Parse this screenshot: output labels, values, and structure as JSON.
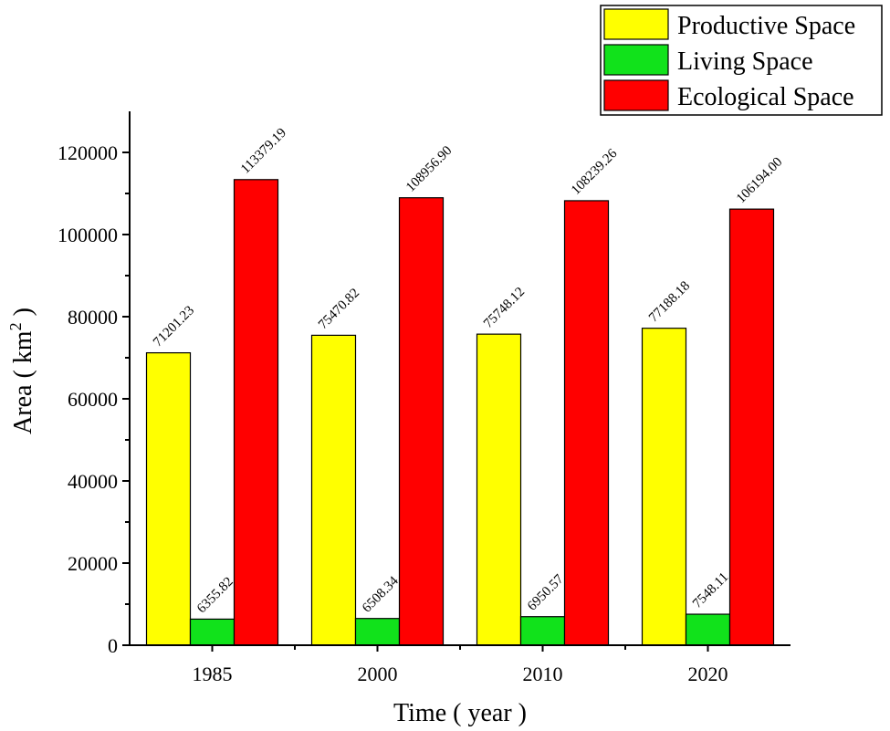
{
  "chart_data": {
    "type": "bar",
    "categories": [
      "1985",
      "2000",
      "2010",
      "2020"
    ],
    "series": [
      {
        "name": "Productive Space",
        "color": "#ffff00",
        "values": [
          71201.23,
          75470.82,
          75748.12,
          77188.18
        ],
        "labels": [
          "71201.23",
          "75470.82",
          "75748.12",
          "77188.18"
        ]
      },
      {
        "name": "Living Space",
        "color": "#11e21b",
        "values": [
          6355.82,
          6508.34,
          6950.57,
          7548.11
        ],
        "labels": [
          "6355.82",
          "6508.34",
          "6950.57",
          "7548.11"
        ]
      },
      {
        "name": "Ecological Space",
        "color": "#ff0000",
        "values": [
          113379.19,
          108956.9,
          108239.26,
          106194.0
        ],
        "labels": [
          "113379.19",
          "108956.90",
          "108239.26",
          "106194.00"
        ]
      }
    ],
    "xlabel": "Time ( year )",
    "ylabel_main": "Area ( km",
    "ylabel_sup": "2",
    "ylabel_end": " )",
    "ylim": [
      0,
      130000
    ],
    "yticks": [
      0,
      20000,
      40000,
      60000,
      80000,
      100000,
      120000
    ],
    "ytick_labels": [
      "0",
      "20000",
      "40000",
      "60000",
      "80000",
      "100000",
      "120000"
    ],
    "legend_position": "top-right",
    "grid": false
  }
}
